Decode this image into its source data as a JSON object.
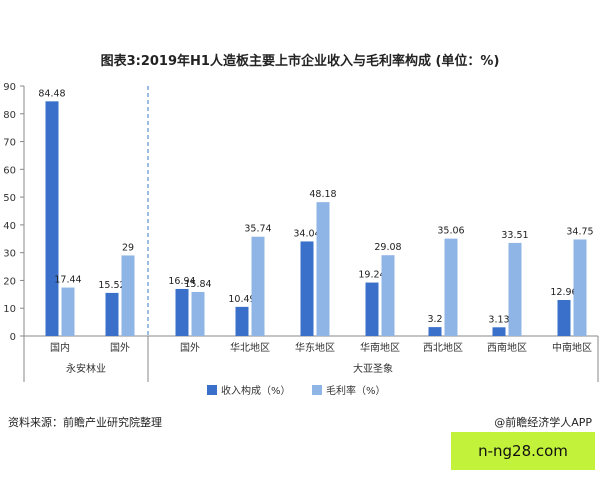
{
  "title": "图表3:2019年H1人造板主要上市企业收入与毛利率构成 (单位：%)",
  "source": "资料来源：前瞻产业研究院整理",
  "credit": "@前瞻经济学人APP",
  "badge": "n-ng28.com",
  "colors": {
    "revenue": "#3a70c9",
    "margin": "#8fb4e6",
    "axis": "#888888",
    "divider": "#5b8fd3"
  },
  "chart_data": {
    "type": "bar",
    "title": "图表3:2019年H1人造板主要上市企业收入与毛利率构成 (单位：%)",
    "ylim": [
      0,
      90
    ],
    "yticks": [
      0,
      10,
      20,
      30,
      40,
      50,
      60,
      70,
      80,
      90
    ],
    "grid": false,
    "legend_position": "bottom",
    "groups": [
      {
        "name": "永安林业",
        "categories": [
          "国内",
          "国外"
        ]
      },
      {
        "name": "大亚圣象",
        "categories": [
          "国外",
          "华北地区",
          "华东地区",
          "华南地区",
          "西北地区",
          "西南地区",
          "中南地区"
        ]
      }
    ],
    "categories": [
      "国内",
      "国外",
      "国外",
      "华北地区",
      "华东地区",
      "华南地区",
      "西北地区",
      "西南地区",
      "中南地区"
    ],
    "series": [
      {
        "name": "收入构成（%）",
        "values": [
          84.48,
          15.52,
          16.94,
          10.49,
          34.04,
          19.24,
          3.2,
          3.13,
          12.96
        ]
      },
      {
        "name": "毛利率（%）",
        "values": [
          17.44,
          29,
          15.84,
          35.74,
          48.18,
          29.08,
          35.06,
          33.51,
          34.75
        ]
      }
    ]
  }
}
